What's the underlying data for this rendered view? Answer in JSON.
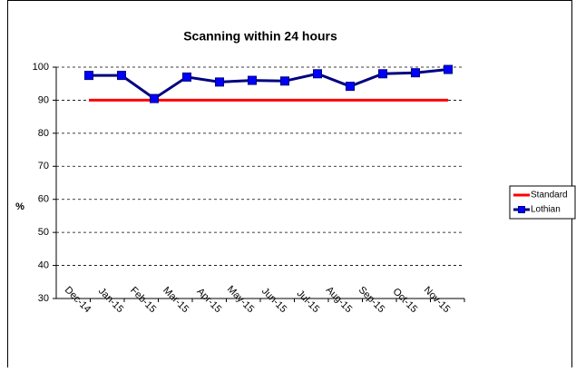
{
  "chart_data": {
    "type": "line",
    "title": "Scanning within 24 hours",
    "y_label": "%",
    "categories": [
      "Dec-14",
      "Jan-15",
      "Feb-15",
      "Mar-15",
      "Apr-15",
      "May-15",
      "Jun-15",
      "Jul-15",
      "Aug-15",
      "Sep-15",
      "Oct-15",
      "Nov-15"
    ],
    "series": [
      {
        "name": "Standard",
        "color": "#ff0000",
        "values": [
          90,
          90,
          90,
          90,
          90,
          90,
          90,
          90,
          90,
          90,
          90,
          90
        ]
      },
      {
        "name": "Lothian",
        "color": "#000080",
        "marker_color": "#0000ff",
        "values": [
          97.5,
          97.5,
          90.5,
          97,
          95.5,
          96,
          95.8,
          98,
          94.2,
          98,
          98.3,
          99.3
        ]
      }
    ],
    "ylim": [
      30,
      100
    ],
    "yticks": [
      30,
      40,
      50,
      60,
      70,
      80,
      90,
      100
    ],
    "grid": true,
    "legend": "right"
  }
}
